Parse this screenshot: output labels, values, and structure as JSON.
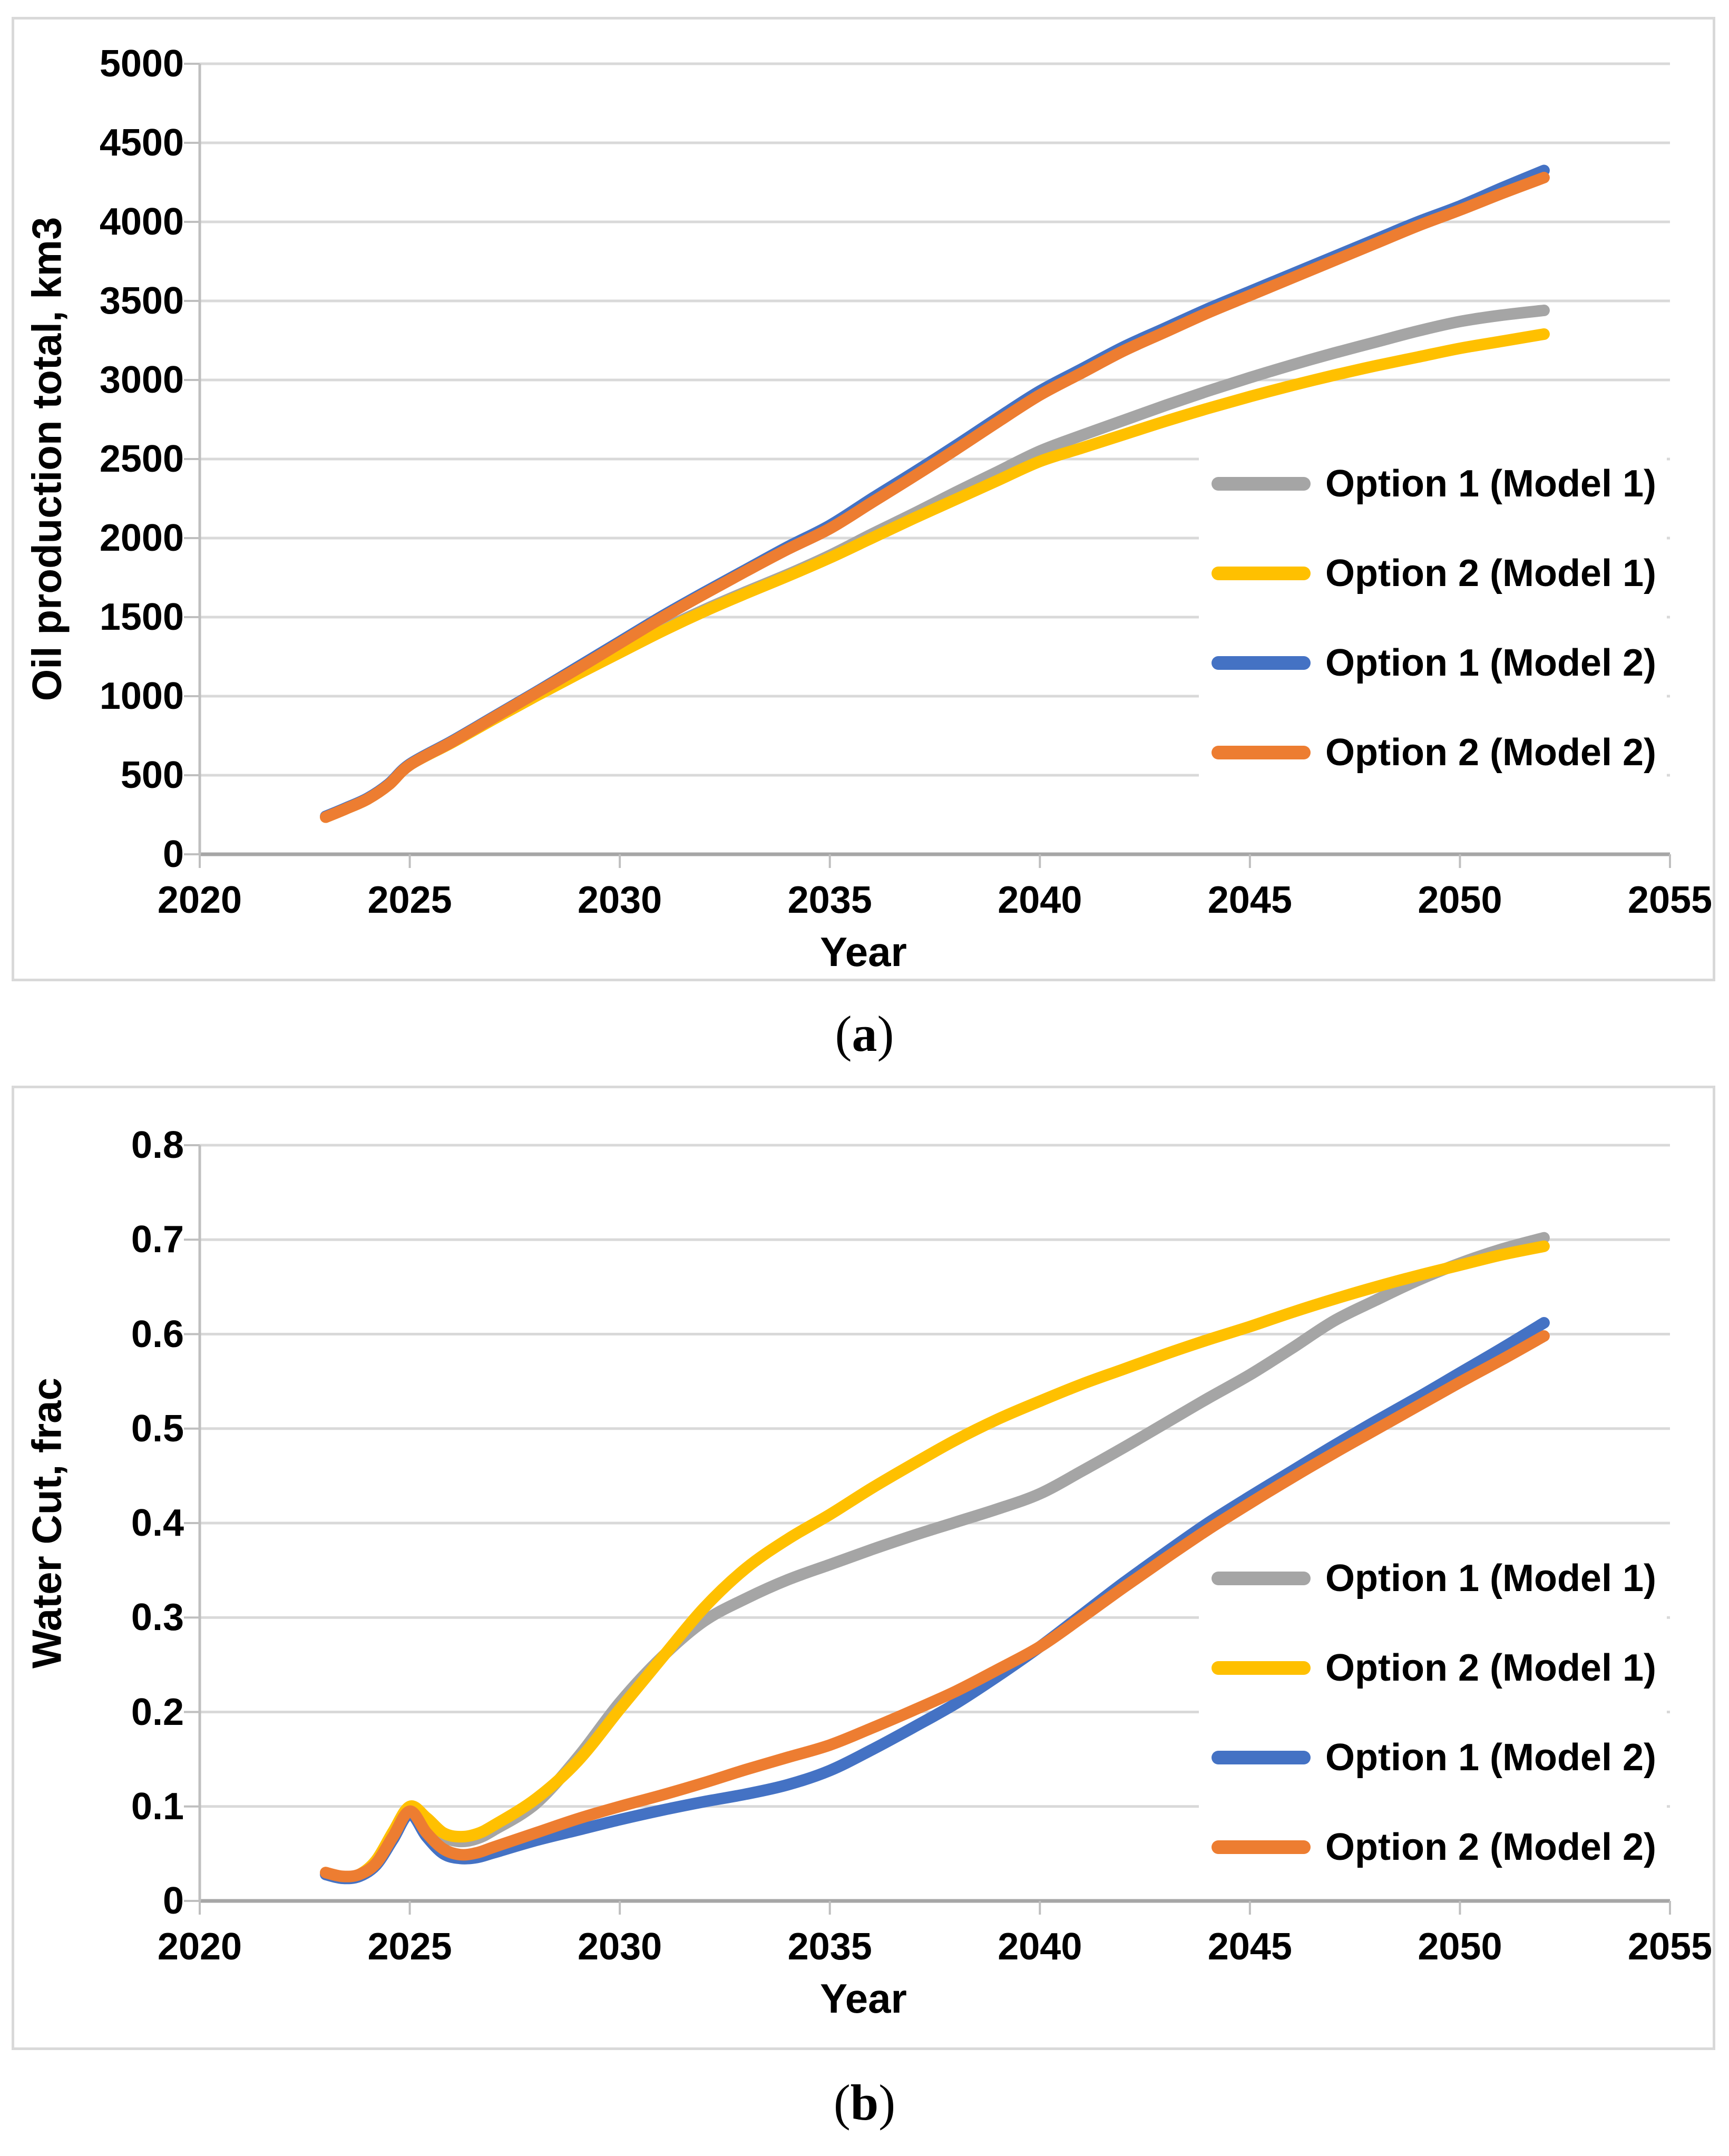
{
  "figure": {
    "background": "#ffffff",
    "panel_border_color": "#D9D9D9"
  },
  "colors": {
    "gridline": "#D9D9D9",
    "axis": "#BFBFBF",
    "axis_zero": "#A6A6A6",
    "text": "#000000",
    "series_gray": "#A5A5A5",
    "series_yellow": "#FFC000",
    "series_blue": "#4472C4",
    "series_orange": "#ED7D31"
  },
  "captions": {
    "a": {
      "open": "(",
      "letter": "a",
      "close": ")"
    },
    "b": {
      "open": "(",
      "letter": "b",
      "close": ")"
    }
  },
  "chart_data": [
    {
      "id": "a",
      "type": "line",
      "title": "",
      "xlabel": "Year",
      "ylabel": "Oil production total, km3",
      "xlim": [
        2020,
        2055
      ],
      "ylim": [
        0,
        5000
      ],
      "grid": "horizontal",
      "legend_position": "right-middle",
      "x_ticks": [
        "2020",
        "2025",
        "2030",
        "2035",
        "2040",
        "2045",
        "2050",
        "2055"
      ],
      "y_ticks": [
        "0",
        "500",
        "1000",
        "1500",
        "2000",
        "2500",
        "3000",
        "3500",
        "4000",
        "4500",
        "5000"
      ],
      "x": [
        2023,
        2023.5,
        2024,
        2024.5,
        2025,
        2026,
        2027,
        2028,
        2029,
        2030,
        2031,
        2032,
        2033,
        2034,
        2035,
        2036,
        2037,
        2038,
        2039,
        2040,
        2041,
        2042,
        2043,
        2044,
        2045,
        2046,
        2047,
        2048,
        2049,
        2050,
        2051,
        2052
      ],
      "series": [
        {
          "name": "Option 1 (Model 1)",
          "color": "#A5A5A5",
          "values": [
            235,
            290,
            350,
            440,
            565,
            708,
            858,
            1005,
            1145,
            1285,
            1420,
            1545,
            1660,
            1770,
            1890,
            2025,
            2155,
            2290,
            2420,
            2550,
            2650,
            2745,
            2840,
            2930,
            3015,
            3095,
            3170,
            3240,
            3310,
            3370,
            3410,
            3440
          ]
        },
        {
          "name": "Option 2 (Model 1)",
          "color": "#FFC000",
          "values": [
            235,
            290,
            350,
            440,
            565,
            706,
            855,
            1000,
            1140,
            1275,
            1410,
            1535,
            1650,
            1760,
            1875,
            2000,
            2125,
            2245,
            2365,
            2485,
            2570,
            2655,
            2740,
            2820,
            2895,
            2965,
            3030,
            3090,
            3145,
            3200,
            3245,
            3290
          ]
        },
        {
          "name": "Option 1 (Model 2)",
          "color": "#4472C4",
          "values": [
            240,
            295,
            355,
            445,
            570,
            715,
            870,
            1025,
            1185,
            1345,
            1505,
            1655,
            1800,
            1945,
            2080,
            2250,
            2415,
            2585,
            2760,
            2930,
            3070,
            3210,
            3330,
            3450,
            3560,
            3670,
            3780,
            3890,
            4000,
            4100,
            4215,
            4325
          ]
        },
        {
          "name": "Option 2 (Model 2)",
          "color": "#ED7D31",
          "values": [
            235,
            290,
            350,
            440,
            565,
            710,
            865,
            1020,
            1175,
            1335,
            1495,
            1645,
            1790,
            1930,
            2060,
            2225,
            2390,
            2560,
            2735,
            2905,
            3045,
            3185,
            3305,
            3425,
            3535,
            3645,
            3755,
            3865,
            3975,
            4075,
            4180,
            4280
          ]
        }
      ]
    },
    {
      "id": "b",
      "type": "line",
      "title": "",
      "xlabel": "Year",
      "ylabel": "Water Cut, frac",
      "xlim": [
        2020,
        2055
      ],
      "ylim": [
        0,
        0.8
      ],
      "grid": "horizontal",
      "legend_position": "right-middle",
      "x_ticks": [
        "2020",
        "2025",
        "2030",
        "2035",
        "2040",
        "2045",
        "2050",
        "2055"
      ],
      "y_ticks": [
        "0",
        "0.1",
        "0.2",
        "0.3",
        "0.4",
        "0.5",
        "0.6",
        "0.7",
        "0.8"
      ],
      "x": [
        2023,
        2023.4,
        2023.8,
        2024.2,
        2024.6,
        2025,
        2025.4,
        2025.8,
        2026.2,
        2026.6,
        2027,
        2028,
        2029,
        2030,
        2031,
        2032,
        2033,
        2034,
        2035,
        2036,
        2037,
        2038,
        2039,
        2040,
        2041,
        2042,
        2043,
        2044,
        2045,
        2046,
        2047,
        2048,
        2049,
        2050,
        2051,
        2052
      ],
      "series": [
        {
          "name": "Option 1 (Model 1)",
          "color": "#A5A5A5",
          "values": [
            0.028,
            0.024,
            0.027,
            0.042,
            0.072,
            0.098,
            0.085,
            0.068,
            0.063,
            0.066,
            0.075,
            0.103,
            0.152,
            0.21,
            0.258,
            0.296,
            0.32,
            0.34,
            0.356,
            0.372,
            0.387,
            0.401,
            0.415,
            0.431,
            0.455,
            0.48,
            0.506,
            0.532,
            0.557,
            0.585,
            0.614,
            0.636,
            0.657,
            0.675,
            0.69,
            0.702
          ]
        },
        {
          "name": "Option 2 (Model 1)",
          "color": "#FFC000",
          "values": [
            0.03,
            0.025,
            0.028,
            0.043,
            0.073,
            0.1,
            0.088,
            0.072,
            0.068,
            0.071,
            0.08,
            0.108,
            0.148,
            0.203,
            0.257,
            0.31,
            0.352,
            0.383,
            0.409,
            0.437,
            0.463,
            0.488,
            0.51,
            0.529,
            0.547,
            0.563,
            0.579,
            0.594,
            0.608,
            0.623,
            0.637,
            0.65,
            0.662,
            0.673,
            0.684,
            0.693
          ]
        },
        {
          "name": "Option 1 (Model 2)",
          "color": "#4472C4",
          "values": [
            0.028,
            0.024,
            0.026,
            0.038,
            0.065,
            0.092,
            0.068,
            0.05,
            0.045,
            0.046,
            0.051,
            0.064,
            0.075,
            0.086,
            0.096,
            0.105,
            0.113,
            0.123,
            0.138,
            0.16,
            0.184,
            0.209,
            0.238,
            0.269,
            0.303,
            0.337,
            0.369,
            0.4,
            0.428,
            0.455,
            0.482,
            0.508,
            0.533,
            0.559,
            0.585,
            0.612
          ]
        },
        {
          "name": "Option 2 (Model 2)",
          "color": "#ED7D31",
          "values": [
            0.03,
            0.026,
            0.028,
            0.04,
            0.068,
            0.095,
            0.072,
            0.055,
            0.049,
            0.051,
            0.057,
            0.072,
            0.087,
            0.1,
            0.112,
            0.125,
            0.139,
            0.152,
            0.165,
            0.183,
            0.202,
            0.222,
            0.245,
            0.269,
            0.3,
            0.332,
            0.363,
            0.393,
            0.421,
            0.448,
            0.474,
            0.499,
            0.524,
            0.549,
            0.573,
            0.598
          ]
        }
      ]
    }
  ]
}
